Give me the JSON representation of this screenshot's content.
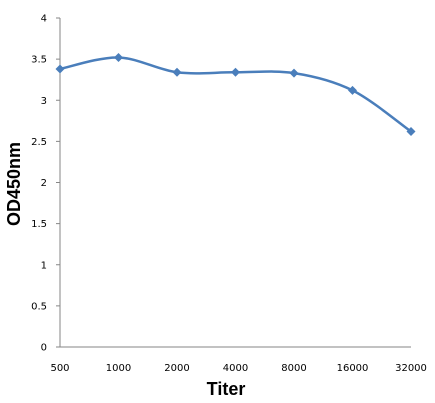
{
  "chart_data": {
    "type": "line",
    "title": "",
    "xlabel": "Titer",
    "ylabel": "OD450nm",
    "categories": [
      "500",
      "1000",
      "2000",
      "4000",
      "8000",
      "16000",
      "32000"
    ],
    "series": [
      {
        "values": [
          3.38,
          3.52,
          3.34,
          3.34,
          3.33,
          3.12,
          2.62
        ]
      }
    ],
    "ylim": [
      0,
      4
    ],
    "yticks": [
      "0",
      "0.5",
      "1",
      "1.5",
      "2",
      "2.5",
      "3",
      "3.5",
      "4"
    ],
    "grid": false,
    "legend": "none",
    "smooth": true,
    "marker": "diamond",
    "line_color": "#4a7ebb",
    "axis_color": "#868686"
  }
}
